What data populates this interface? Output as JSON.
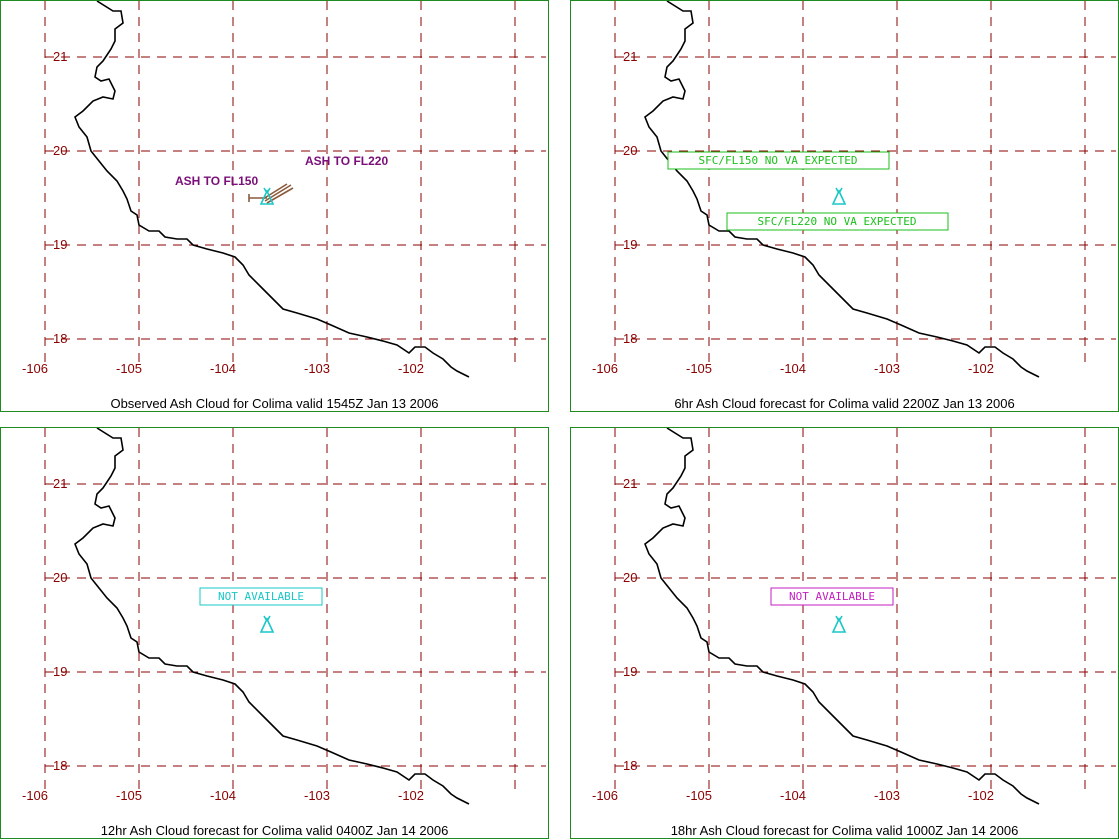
{
  "panels": [
    {
      "caption": "Observed Ash Cloud for Colima valid 1545Z Jan 13 2006",
      "labels": [
        "ASH TO FL150",
        "ASH TO FL220"
      ],
      "boxes": []
    },
    {
      "caption": "6hr Ash Cloud forecast for Colima valid 2200Z Jan 13 2006",
      "labels": [],
      "boxes": [
        {
          "text": "SFC/FL150 NO VA EXPECTED",
          "color": "#1bbf1b"
        },
        {
          "text": "SFC/FL220 NO VA EXPECTED",
          "color": "#1bbf1b"
        }
      ]
    },
    {
      "caption": "12hr Ash Cloud forecast for Colima valid 0400Z Jan 14 2006",
      "labels": [],
      "boxes": [
        {
          "text": "NOT AVAILABLE",
          "color": "#19c7c7"
        }
      ]
    },
    {
      "caption": "18hr Ash Cloud forecast for Colima valid 1000Z Jan 14 2006",
      "labels": [],
      "boxes": [
        {
          "text": "NOT AVAILABLE",
          "color": "#c41fc4"
        }
      ]
    }
  ],
  "axes": {
    "lon_labels": [
      "-106",
      "-105",
      "-104",
      "-103",
      "-102"
    ],
    "lat_labels": [
      "21",
      "20",
      "19",
      "18"
    ]
  },
  "colors": {
    "panel_border": "#1f8a1f",
    "grid": "#8b0000",
    "coastline": "#000000",
    "volcano_marker": "#19c7c7",
    "ash_label": "#7a0f7a",
    "ash_plume": "#8b5a3c"
  },
  "icons": [
    "volcano-icon"
  ]
}
